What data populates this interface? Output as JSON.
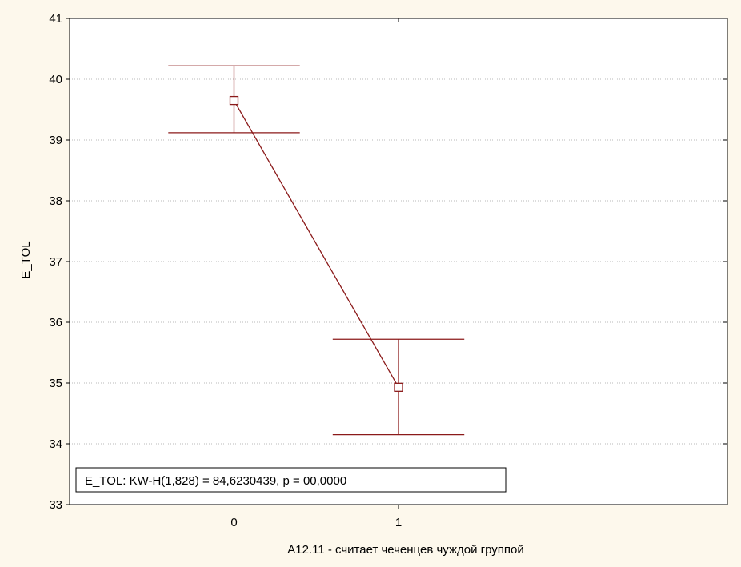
{
  "chart_data": {
    "type": "line",
    "xlabel": "A12.11 - считает чеченцев чуждой группой",
    "ylabel": "E_TOL",
    "categories": [
      "0",
      "1"
    ],
    "x_slots": 4,
    "category_positions": [
      1,
      2
    ],
    "ylim": [
      33,
      41
    ],
    "yticks": [
      "33",
      "34",
      "35",
      "36",
      "37",
      "38",
      "39",
      "40",
      "41"
    ],
    "grid": true,
    "series": [
      {
        "values": [
          39.65,
          34.93
        ],
        "lower": [
          39.12,
          34.15
        ],
        "upper": [
          40.22,
          35.72
        ]
      }
    ],
    "annotation": "E_TOL:  KW-H(1,828) = 84,6230439, p = 00,0000",
    "colors": {
      "series": "#8b1a1a",
      "grid": "#b8b8b8",
      "background": "#fdf8ec",
      "plot_area": "#ffffff"
    }
  }
}
